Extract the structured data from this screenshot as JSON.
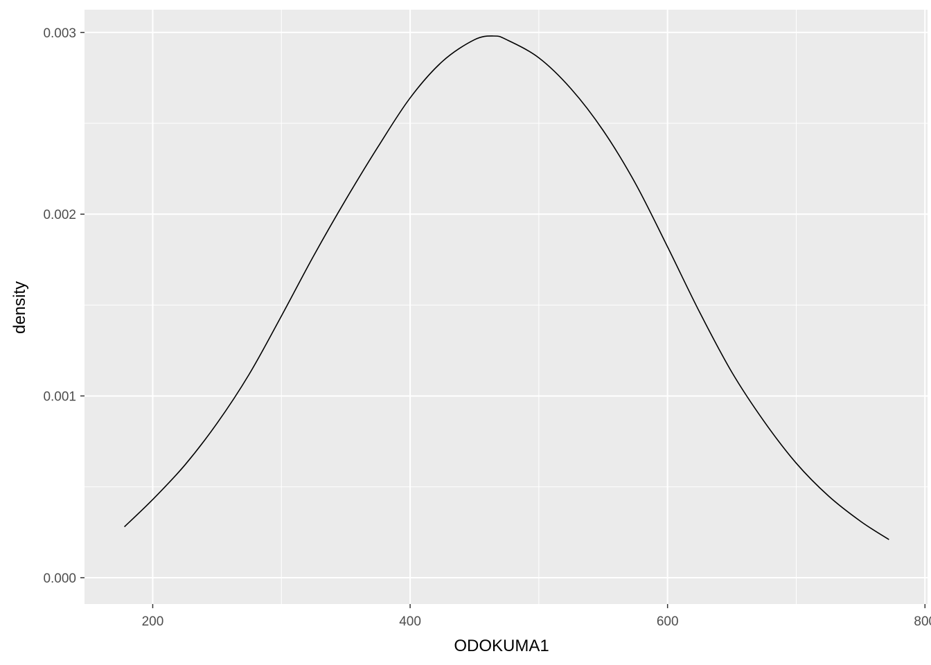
{
  "chart_data": {
    "type": "line",
    "title": "",
    "xlabel": "ODOKUMA1",
    "ylabel": "density",
    "xlim": [
      147,
      802
    ],
    "ylim": [
      -0.000145,
      0.003125
    ],
    "grid": true,
    "legend": "none",
    "x_ticks": [
      200,
      400,
      600,
      800
    ],
    "x_tick_labels": [
      "200",
      "400",
      "600",
      "800"
    ],
    "x_minor_ticks": [
      300,
      500,
      700
    ],
    "y_ticks": [
      0,
      0.001,
      0.002,
      0.003
    ],
    "y_tick_labels": [
      "0.000",
      "0.001",
      "0.002",
      "0.003"
    ],
    "y_minor_ticks": [
      0.0005,
      0.0015,
      0.0025
    ],
    "colors": {
      "panel": "#ebebeb",
      "grid": "#ffffff",
      "line": "#000000",
      "tick_text": "#4d4d4d"
    },
    "series": [
      {
        "values_x": [
          178,
          200,
          225,
          250,
          275,
          300,
          325,
          350,
          375,
          400,
          425,
          450,
          465,
          475,
          500,
          525,
          550,
          575,
          600,
          625,
          650,
          675,
          700,
          725,
          750,
          772
        ],
        "values_y": [
          0.00028,
          0.00043,
          0.00062,
          0.00085,
          0.00112,
          0.00144,
          0.00177,
          0.00208,
          0.00237,
          0.00264,
          0.00284,
          0.00296,
          0.00298,
          0.00296,
          0.00286,
          0.00269,
          0.00246,
          0.00217,
          0.00182,
          0.00146,
          0.00113,
          0.00086,
          0.00063,
          0.00045,
          0.00031,
          0.00021
        ]
      }
    ]
  }
}
